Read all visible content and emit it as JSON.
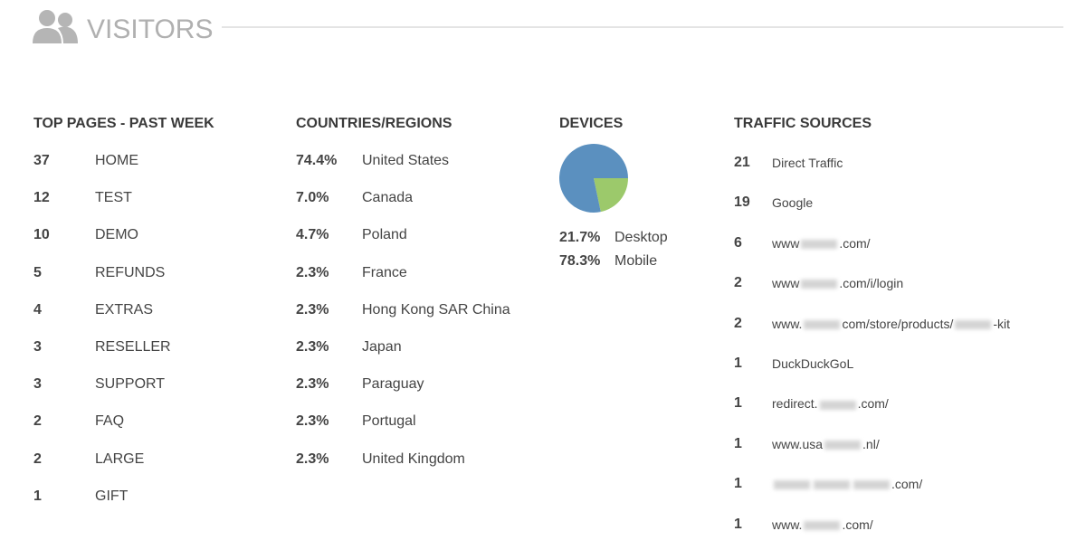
{
  "header": {
    "title": "VISITORS"
  },
  "top_pages": {
    "title": "TOP PAGES - PAST WEEK",
    "rows": [
      [
        "37",
        "HOME"
      ],
      [
        "12",
        "TEST"
      ],
      [
        "10",
        "DEMO"
      ],
      [
        "5",
        "REFUNDS"
      ],
      [
        "4",
        "EXTRAS"
      ],
      [
        "3",
        "RESELLER"
      ],
      [
        "3",
        "SUPPORT"
      ],
      [
        "2",
        "FAQ"
      ],
      [
        "2",
        "LARGE"
      ],
      [
        "1",
        "GIFT"
      ]
    ]
  },
  "countries": {
    "title": "COUNTRIES/REGIONS",
    "rows": [
      [
        "74.4%",
        "United States"
      ],
      [
        "7.0%",
        "Canada"
      ],
      [
        "4.7%",
        "Poland"
      ],
      [
        "2.3%",
        "France"
      ],
      [
        "2.3%",
        "Hong Kong SAR China"
      ],
      [
        "2.3%",
        "Japan"
      ],
      [
        "2.3%",
        "Paraguay"
      ],
      [
        "2.3%",
        "Portugal"
      ],
      [
        "2.3%",
        "United Kingdom"
      ]
    ]
  },
  "devices": {
    "title": "DEVICES",
    "chart_data": {
      "type": "pie",
      "categories": [
        "Desktop",
        "Mobile"
      ],
      "values": [
        21.7,
        78.3
      ],
      "value_labels": [
        "21.7%",
        "78.3%"
      ],
      "colors": [
        "#9cc96b",
        "#5b90bf"
      ],
      "start_angle": 90
    }
  },
  "traffic": {
    "title": "TRAFFIC SOURCES",
    "rows": [
      {
        "count": "21",
        "parts": [
          "Direct Traffic"
        ]
      },
      {
        "count": "19",
        "parts": [
          "Google"
        ]
      },
      {
        "count": "6",
        "parts": [
          "www",
          ".com/"
        ]
      },
      {
        "count": "2",
        "parts": [
          "www",
          ".com/i/login"
        ]
      },
      {
        "count": "2",
        "parts": [
          "www.",
          "com/store/products/",
          "-kit"
        ]
      },
      {
        "count": "1",
        "parts": [
          "DuckDuckGoL"
        ]
      },
      {
        "count": "1",
        "parts": [
          "redirect.",
          ".com/"
        ]
      },
      {
        "count": "1",
        "parts": [
          "www.usa",
          ".nl/"
        ]
      },
      {
        "count": "1",
        "parts": [
          ".com/"
        ],
        "leading_blur": true
      },
      {
        "count": "1",
        "parts": [
          "www.",
          ".com/"
        ]
      }
    ]
  }
}
